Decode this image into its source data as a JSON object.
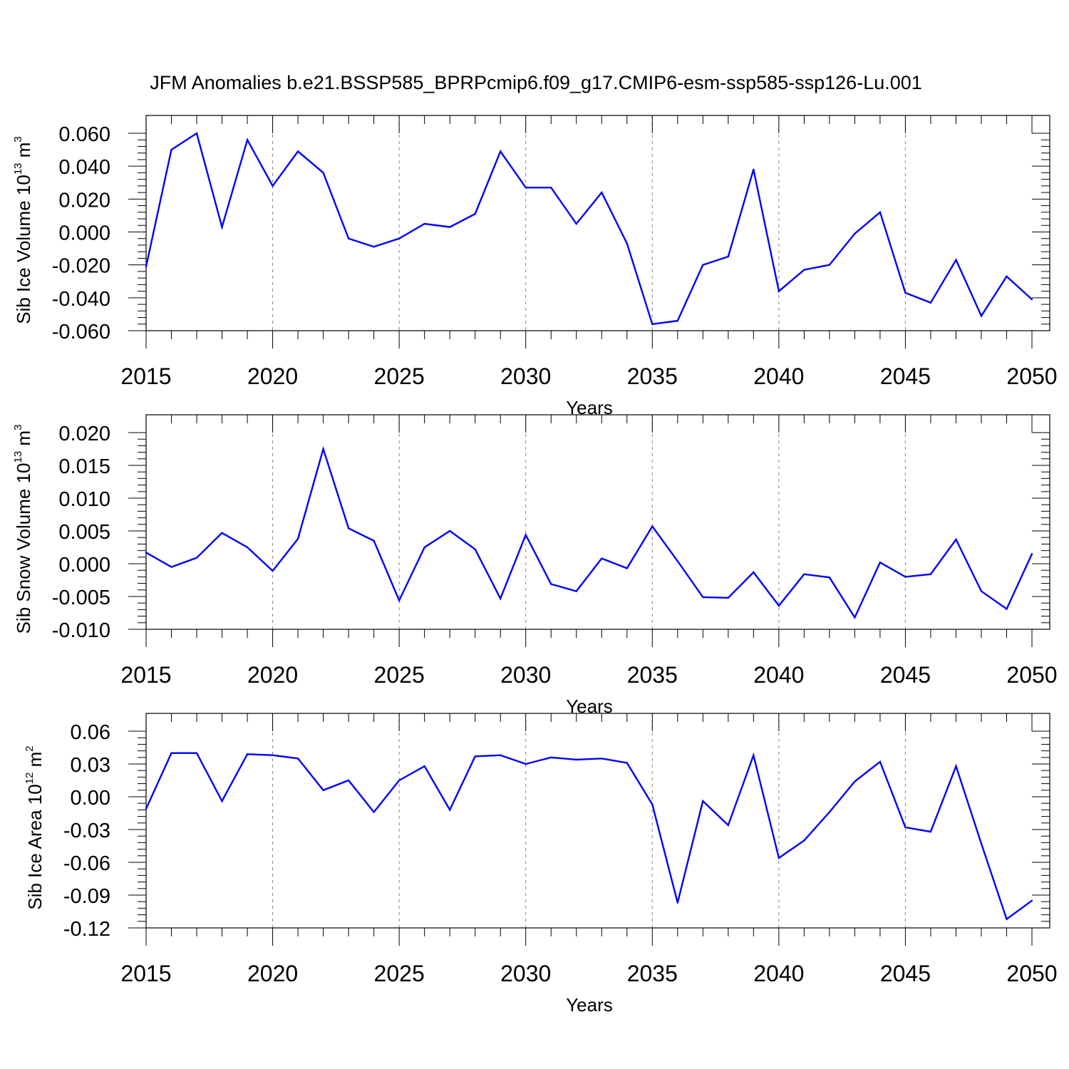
{
  "title": "JFM Anomalies b.e21.BSSP585_BPRPcmip6.f09_g17.CMIP6-esm-ssp585-ssp126-Lu.001",
  "colors": {
    "line": "#0000ff",
    "axis": "#000000",
    "grid": "#808080"
  },
  "chart_data": [
    {
      "type": "line",
      "xlabel": "Years",
      "ylabel": {
        "text": "Sib Ice Volume 10",
        "exponent": "13",
        "unit": " m",
        "unit_exponent": "3"
      },
      "xlim": [
        2015,
        2050
      ],
      "ylim": [
        -0.06,
        0.06
      ],
      "xticks": [
        "2015",
        "2020",
        "2025",
        "2030",
        "2035",
        "2040",
        "2045",
        "2050"
      ],
      "yticks": [
        "-0.060",
        "-0.040",
        "-0.020",
        "0.000",
        "0.020",
        "0.040",
        "0.060"
      ],
      "grid": "dashed vertical lines at major x ticks",
      "x": [
        2015,
        2016,
        2017,
        2018,
        2019,
        2020,
        2021,
        2022,
        2023,
        2024,
        2025,
        2026,
        2027,
        2028,
        2029,
        2030,
        2031,
        2032,
        2033,
        2034,
        2035,
        2036,
        2037,
        2038,
        2039,
        2040,
        2041,
        2042,
        2043,
        2044,
        2045,
        2046,
        2047,
        2048,
        2049,
        2050
      ],
      "values": [
        -0.021,
        0.05,
        0.06,
        0.003,
        0.056,
        0.028,
        0.049,
        0.036,
        -0.004,
        -0.009,
        -0.004,
        0.005,
        0.003,
        0.011,
        0.049,
        0.027,
        0.027,
        0.005,
        0.024,
        -0.007,
        -0.056,
        -0.054,
        -0.02,
        -0.015,
        0.038,
        -0.036,
        -0.023,
        -0.02,
        -0.001,
        0.012,
        -0.037,
        -0.043,
        -0.017,
        -0.051,
        -0.027,
        -0.041
      ]
    },
    {
      "type": "line",
      "xlabel": "Years",
      "ylabel": {
        "text": "Sib Snow Volume 10",
        "exponent": "13",
        "unit": " m",
        "unit_exponent": "3"
      },
      "xlim": [
        2015,
        2050
      ],
      "ylim": [
        -0.01,
        0.02
      ],
      "xticks": [
        "2015",
        "2020",
        "2025",
        "2030",
        "2035",
        "2040",
        "2045",
        "2050"
      ],
      "yticks": [
        "-0.010",
        "-0.005",
        "0.000",
        "0.005",
        "0.010",
        "0.015",
        "0.020"
      ],
      "grid": "dashed vertical lines at major x ticks",
      "x": [
        2015,
        2016,
        2017,
        2018,
        2019,
        2020,
        2021,
        2022,
        2023,
        2024,
        2025,
        2026,
        2027,
        2028,
        2029,
        2030,
        2031,
        2032,
        2033,
        2034,
        2035,
        2036,
        2037,
        2038,
        2039,
        2040,
        2041,
        2042,
        2043,
        2044,
        2045,
        2046,
        2047,
        2048,
        2049,
        2050
      ],
      "values": [
        0.0017,
        -0.0005,
        0.0009,
        0.0047,
        0.0025,
        -0.0011,
        0.0038,
        0.0175,
        0.0054,
        0.0035,
        -0.0056,
        0.0025,
        0.005,
        0.0022,
        -0.0053,
        0.0044,
        -0.0031,
        -0.0042,
        0.0008,
        -0.0007,
        0.0057,
        0.0004,
        -0.0051,
        -0.0052,
        -0.0013,
        -0.0064,
        -0.0016,
        -0.0021,
        -0.0082,
        0.0002,
        -0.002,
        -0.0016,
        0.0037,
        -0.0042,
        -0.0069,
        0.0015
      ]
    },
    {
      "type": "line",
      "xlabel": "Years",
      "ylabel": {
        "text": "Sib Ice Area 10",
        "exponent": "12",
        "unit": " m",
        "unit_exponent": "2"
      },
      "xlim": [
        2015,
        2050
      ],
      "ylim": [
        -0.12,
        0.06
      ],
      "xticks": [
        "2015",
        "2020",
        "2025",
        "2030",
        "2035",
        "2040",
        "2045",
        "2050"
      ],
      "yticks": [
        "-0.12",
        "-0.09",
        "-0.06",
        "-0.03",
        "0.00",
        "0.03",
        "0.06"
      ],
      "grid": "dashed vertical lines at major x ticks",
      "x": [
        2015,
        2016,
        2017,
        2018,
        2019,
        2020,
        2021,
        2022,
        2023,
        2024,
        2025,
        2026,
        2027,
        2028,
        2029,
        2030,
        2031,
        2032,
        2033,
        2034,
        2035,
        2036,
        2037,
        2038,
        2039,
        2040,
        2041,
        2042,
        2043,
        2044,
        2045,
        2046,
        2047,
        2048,
        2049,
        2050
      ],
      "values": [
        -0.011,
        0.04,
        0.04,
        -0.004,
        0.039,
        0.038,
        0.035,
        0.006,
        0.015,
        -0.014,
        0.015,
        0.028,
        -0.012,
        0.037,
        0.038,
        0.03,
        0.036,
        0.034,
        0.035,
        0.031,
        -0.007,
        -0.097,
        -0.004,
        -0.026,
        0.038,
        -0.056,
        -0.04,
        -0.014,
        0.014,
        0.032,
        -0.028,
        -0.032,
        0.028,
        -0.043,
        -0.112,
        -0.095
      ]
    }
  ]
}
